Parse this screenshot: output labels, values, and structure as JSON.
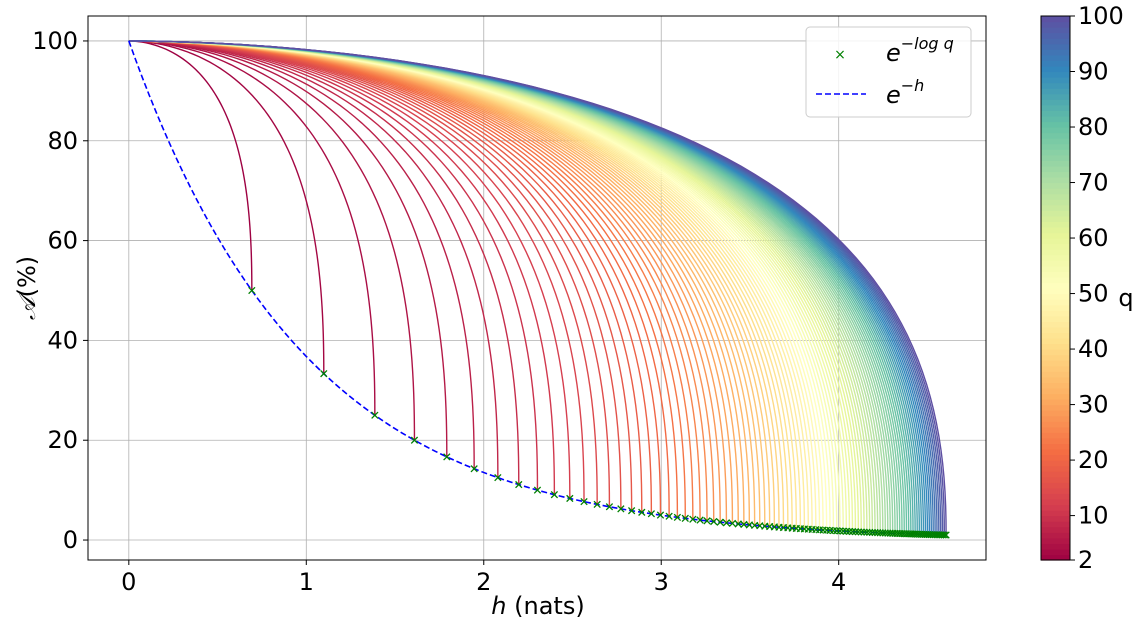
{
  "chart_data": {
    "type": "line",
    "title": "",
    "xlabel_var": "h",
    "xlabel_unit": " (nats)",
    "ylabel_var": "𝒜",
    "ylabel_unit": "(%)",
    "xlim": [
      -0.23,
      4.83
    ],
    "ylim": [
      -4,
      105
    ],
    "xticks": [
      0,
      1,
      2,
      3,
      4
    ],
    "yticks": [
      0,
      20,
      40,
      60,
      80,
      100
    ],
    "grid": true,
    "legend": {
      "placement": "top-right",
      "entries": [
        {
          "symbol": "×",
          "color": "#008000",
          "text_base": "e",
          "text_sup": "−log q",
          "series": "markers"
        },
        {
          "symbol": "dashed",
          "color": "#0000ff",
          "text_base": "e",
          "text_sup": "−h",
          "series": "envelope"
        }
      ]
    },
    "series": [
      {
        "key": "envelope",
        "description_formula": "y = 100·exp(-h)",
        "x_range": [
          0,
          4.605
        ],
        "color": "#0000ff",
        "style": "dashed"
      },
      {
        "key": "markers",
        "q_values_from": 2,
        "q_values_to": 100,
        "x_formula": "log(q)",
        "y_formula": "100/q",
        "color": "#008000",
        "marker": "x"
      },
      {
        "key": "curves",
        "q_from": 2,
        "q_to": 100,
        "start": [
          0,
          100
        ],
        "end_formula": "[log(q), 100/q]",
        "colormap": "Spectral"
      }
    ],
    "colorbar": {
      "label": "q",
      "min": 2,
      "max": 100,
      "ticks": [
        2,
        10,
        20,
        30,
        40,
        50,
        60,
        70,
        80,
        90,
        100
      ],
      "colormap": "Spectral"
    }
  }
}
